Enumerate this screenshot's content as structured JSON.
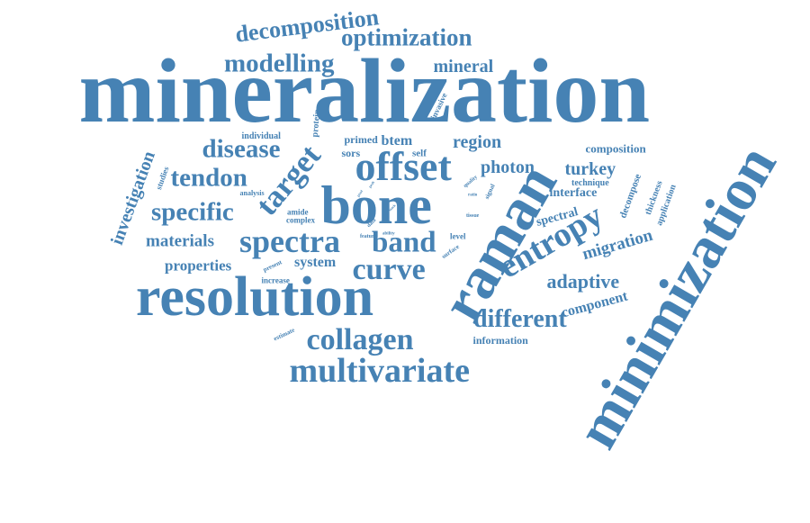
{
  "palette": {
    "word_color": "#4682b4",
    "background": "#ffffff"
  },
  "words": [
    {
      "id": "mineralization",
      "text": "mineralization",
      "weight": 1.0
    },
    {
      "id": "minimization",
      "text": "minimization",
      "weight": 0.86
    },
    {
      "id": "resolution",
      "text": "resolution",
      "weight": 0.62
    },
    {
      "id": "raman",
      "text": "raman",
      "weight": 0.6
    },
    {
      "id": "bone",
      "text": "bone",
      "weight": 0.55
    },
    {
      "id": "offset",
      "text": "offset",
      "weight": 0.45
    },
    {
      "id": "multivariate",
      "text": "multivariate",
      "weight": 0.38
    },
    {
      "id": "entropy",
      "text": "entropy",
      "weight": 0.38
    },
    {
      "id": "spectra",
      "text": "spectra",
      "weight": 0.36
    },
    {
      "id": "target",
      "text": "target",
      "weight": 0.35
    },
    {
      "id": "collagen",
      "text": "collagen",
      "weight": 0.35
    },
    {
      "id": "curve",
      "text": "curve",
      "weight": 0.34
    },
    {
      "id": "band",
      "text": "band",
      "weight": 0.33
    },
    {
      "id": "decomposition",
      "text": "decomposition",
      "weight": 0.28
    },
    {
      "id": "optimization",
      "text": "optimization",
      "weight": 0.28
    },
    {
      "id": "modelling",
      "text": "modelling",
      "weight": 0.29
    },
    {
      "id": "disease",
      "text": "disease",
      "weight": 0.29
    },
    {
      "id": "tendon",
      "text": "tendon",
      "weight": 0.29
    },
    {
      "id": "specific",
      "text": "specific",
      "weight": 0.29
    },
    {
      "id": "different",
      "text": "different",
      "weight": 0.28
    },
    {
      "id": "investigation",
      "text": "investigation",
      "weight": 0.22
    },
    {
      "id": "mineral",
      "text": "mineral",
      "weight": 0.2
    },
    {
      "id": "adaptive",
      "text": "adaptive",
      "weight": 0.22
    },
    {
      "id": "migration",
      "text": "migration",
      "weight": 0.2
    },
    {
      "id": "region",
      "text": "region",
      "weight": 0.2
    },
    {
      "id": "photon",
      "text": "photon",
      "weight": 0.2
    },
    {
      "id": "turkey",
      "text": "turkey",
      "weight": 0.2
    },
    {
      "id": "materials",
      "text": "materials",
      "weight": 0.2
    },
    {
      "id": "properties",
      "text": "properties",
      "weight": 0.18
    },
    {
      "id": "component",
      "text": "component",
      "weight": 0.17
    },
    {
      "id": "system",
      "text": "system",
      "weight": 0.16
    },
    {
      "id": "btem",
      "text": "btem",
      "weight": 0.16
    },
    {
      "id": "interface",
      "text": "interface",
      "weight": 0.14
    },
    {
      "id": "spectral",
      "text": "spectral",
      "weight": 0.14
    },
    {
      "id": "composition",
      "text": "composition",
      "weight": 0.13
    },
    {
      "id": "information",
      "text": "information",
      "weight": 0.12
    },
    {
      "id": "primed",
      "text": "primed",
      "weight": 0.12
    },
    {
      "id": "sors",
      "text": "sors",
      "weight": 0.12
    },
    {
      "id": "self",
      "text": "self",
      "weight": 0.11
    },
    {
      "id": "technique",
      "text": "technique",
      "weight": 0.1
    },
    {
      "id": "decompose",
      "text": "decompose",
      "weight": 0.11
    },
    {
      "id": "thickness",
      "text": "thickness",
      "weight": 0.1
    },
    {
      "id": "application",
      "text": "application",
      "weight": 0.1
    },
    {
      "id": "individual",
      "text": "individual",
      "weight": 0.1
    },
    {
      "id": "protein",
      "text": "protein",
      "weight": 0.1
    },
    {
      "id": "invasive",
      "text": "invasive",
      "weight": 0.09
    },
    {
      "id": "studies",
      "text": "studies",
      "weight": 0.09
    },
    {
      "id": "analysis",
      "text": "analysis",
      "weight": 0.08
    },
    {
      "id": "amide",
      "text": "amide",
      "weight": 0.09
    },
    {
      "id": "complex",
      "text": "complex",
      "weight": 0.09
    },
    {
      "id": "level",
      "text": "level",
      "weight": 0.09
    },
    {
      "id": "increase",
      "text": "increase",
      "weight": 0.09
    },
    {
      "id": "present",
      "text": "present",
      "weight": 0.07
    },
    {
      "id": "estimate",
      "text": "estimate",
      "weight": 0.07
    },
    {
      "id": "surface",
      "text": "surface",
      "weight": 0.07
    },
    {
      "id": "signal",
      "text": "signal",
      "weight": 0.07
    },
    {
      "id": "quality",
      "text": "quality",
      "weight": 0.06
    },
    {
      "id": "ratio",
      "text": "ratio",
      "weight": 0.05
    },
    {
      "id": "tissue",
      "text": "tissue",
      "weight": 0.06
    },
    {
      "id": "feature",
      "text": "feature",
      "weight": 0.06
    },
    {
      "id": "ability",
      "text": "ability",
      "weight": 0.05
    },
    {
      "id": "data",
      "text": "data",
      "weight": 0.06
    },
    {
      "id": "slice",
      "text": "slice",
      "weight": 0.05
    },
    {
      "id": "stack",
      "text": "stack",
      "weight": 0.04
    },
    {
      "id": "pixel",
      "text": "pixel",
      "weight": 0.04
    },
    {
      "id": "peak",
      "text": "peak",
      "weight": 0.04
    }
  ]
}
